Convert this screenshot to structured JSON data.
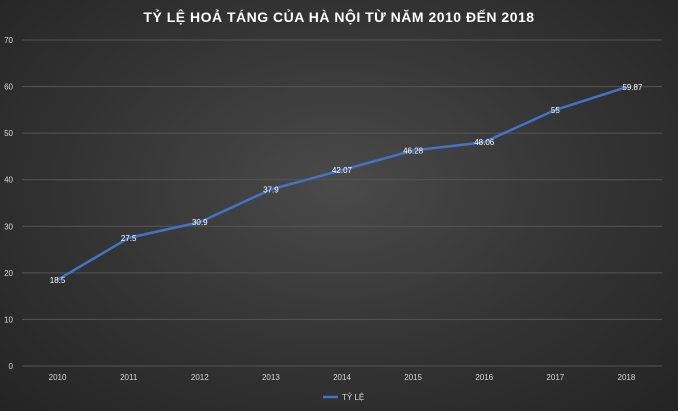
{
  "chart_data": {
    "type": "line",
    "title": "TỶ LỆ HOẢ TÁNG CỦA HÀ NỘI TỪ NĂM 2010 ĐẾN 2018",
    "categories": [
      "2010",
      "2011",
      "2012",
      "2013",
      "2014",
      "2015",
      "2016",
      "2017",
      "2018"
    ],
    "series": [
      {
        "name": "TỶ LỆ",
        "values": [
          18.5,
          27.5,
          30.9,
          37.9,
          42.07,
          46.28,
          48.06,
          55,
          59.87
        ],
        "labels": [
          "18.5",
          "27.5",
          "30.9",
          "37.9",
          "42.07",
          "46.28",
          "48.06",
          "55",
          "59.87"
        ],
        "color": "#4472c4"
      }
    ],
    "ylim": [
      0,
      70
    ],
    "yticks": [
      "0",
      "10",
      "20",
      "30",
      "40",
      "50",
      "60",
      "70"
    ],
    "grid": true,
    "legend_position": "bottom"
  }
}
